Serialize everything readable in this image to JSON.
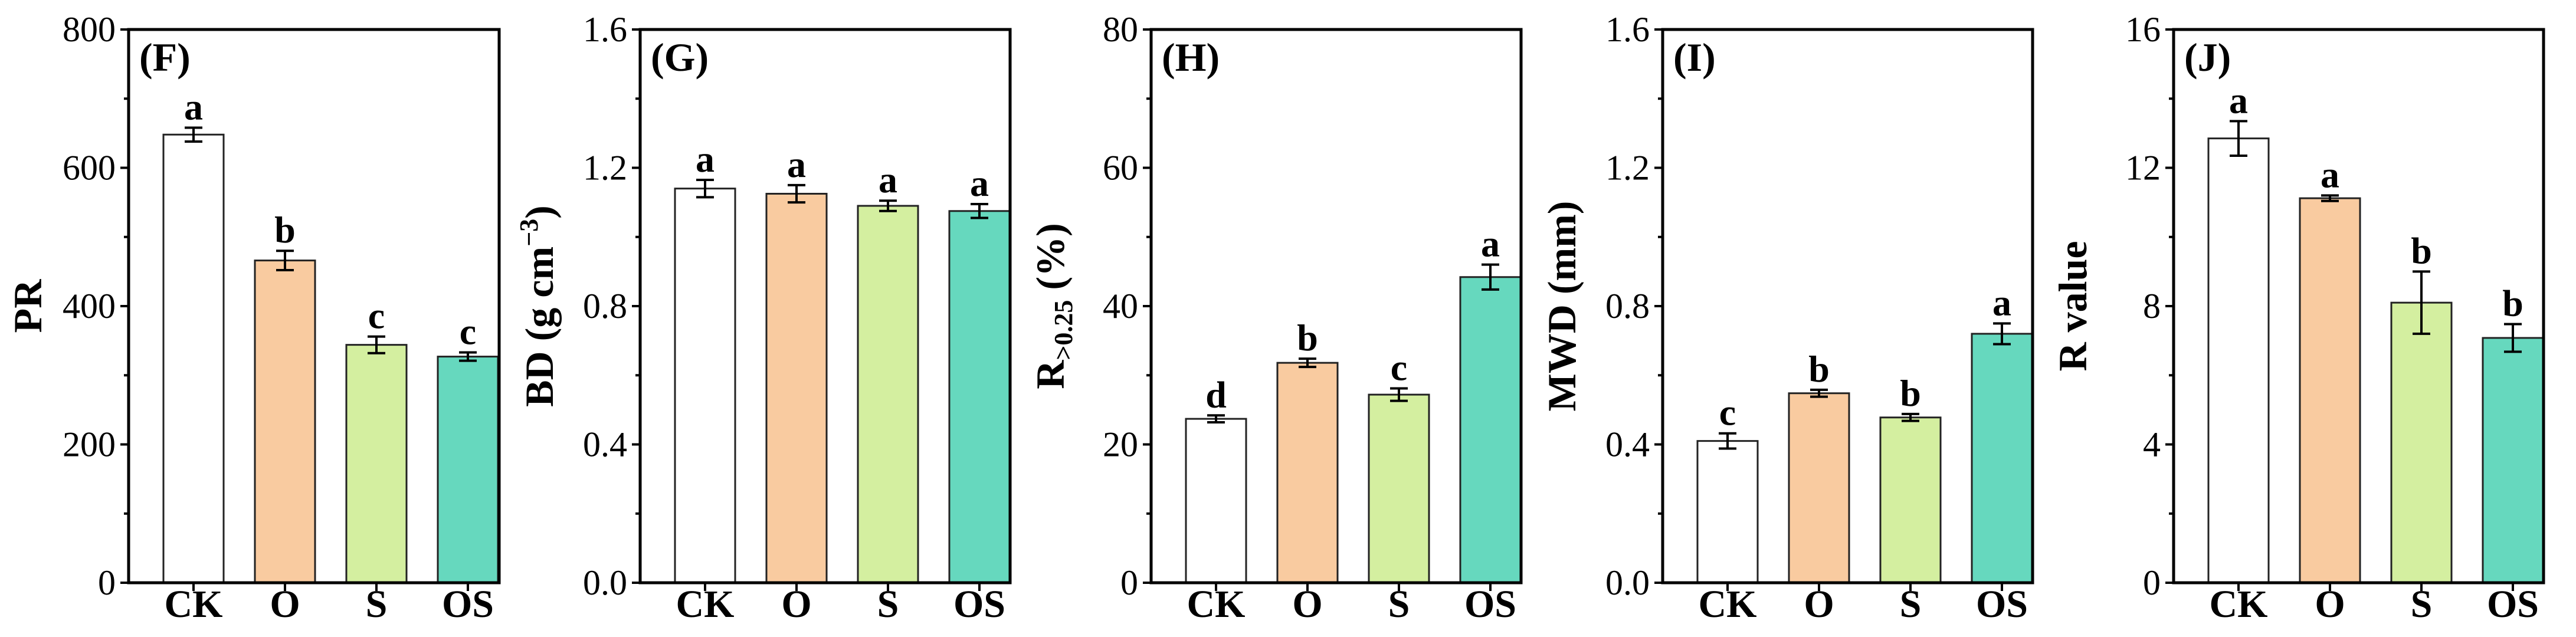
{
  "chart_data": [
    {
      "type": "bar",
      "panel": "(F)",
      "categories": [
        "CK",
        "O",
        "S",
        "OS"
      ],
      "values": [
        648,
        466,
        344,
        327
      ],
      "errors": [
        10,
        14,
        12,
        6
      ],
      "significance": [
        "a",
        "b",
        "c",
        "c"
      ],
      "ylabel": "PR",
      "ylim": [
        0,
        800
      ],
      "yticks": [
        0,
        200,
        400,
        600,
        800
      ],
      "ytick_labels": [
        "0",
        "200",
        "400",
        "600",
        "800"
      ]
    },
    {
      "type": "bar",
      "panel": "(G)",
      "categories": [
        "CK",
        "O",
        "S",
        "OS"
      ],
      "values": [
        1.14,
        1.125,
        1.09,
        1.075
      ],
      "errors": [
        0.025,
        0.025,
        0.015,
        0.02
      ],
      "significance": [
        "a",
        "a",
        "a",
        "a"
      ],
      "ylabel": "BD (g cm",
      "ylabel_sup": "−3",
      "ylabel_tail": ")",
      "ylim": [
        0,
        1.6
      ],
      "yticks": [
        0,
        0.4,
        0.8,
        1.2,
        1.6
      ],
      "ytick_labels": [
        "0.0",
        "0.4",
        "0.8",
        "1.2",
        "1.6"
      ]
    },
    {
      "type": "bar",
      "panel": "(H)",
      "categories": [
        "CK",
        "O",
        "S",
        "OS"
      ],
      "values": [
        23.7,
        31.8,
        27.2,
        44.2
      ],
      "errors": [
        0.5,
        0.6,
        0.9,
        1.8
      ],
      "significance": [
        "d",
        "b",
        "c",
        "a"
      ],
      "ylabel": "R",
      "ylabel_sub": ">0.25",
      "ylabel_tail": " (%)",
      "ylim": [
        0,
        80
      ],
      "yticks": [
        0,
        20,
        40,
        60,
        80
      ],
      "ytick_labels": [
        "0",
        "20",
        "40",
        "60",
        "80"
      ]
    },
    {
      "type": "bar",
      "panel": "(I)",
      "categories": [
        "CK",
        "O",
        "S",
        "OS"
      ],
      "values": [
        0.41,
        0.548,
        0.478,
        0.72
      ],
      "errors": [
        0.022,
        0.01,
        0.01,
        0.03
      ],
      "significance": [
        "c",
        "b",
        "b",
        "a"
      ],
      "ylabel": "MWD (mm)",
      "ylim": [
        0,
        1.6
      ],
      "yticks": [
        0,
        0.4,
        0.8,
        1.2,
        1.6
      ],
      "ytick_labels": [
        "0.0",
        "0.4",
        "0.8",
        "1.2",
        "1.6"
      ]
    },
    {
      "type": "bar",
      "panel": "(J)",
      "categories": [
        "CK",
        "O",
        "S",
        "OS"
      ],
      "values": [
        12.85,
        11.12,
        8.1,
        7.08
      ],
      "errors": [
        0.5,
        0.08,
        0.9,
        0.4
      ],
      "significance": [
        "a",
        "a",
        "b",
        "b"
      ],
      "ylabel": "R value",
      "ylim": [
        0,
        16
      ],
      "yticks": [
        0,
        4,
        8,
        12,
        16
      ],
      "ytick_labels": [
        "0",
        "4",
        "8",
        "12",
        "16"
      ]
    }
  ],
  "colors": {
    "CK": "#ffffff",
    "O": "#f9cba0",
    "S": "#d4efa0",
    "OS": "#66d8be"
  }
}
